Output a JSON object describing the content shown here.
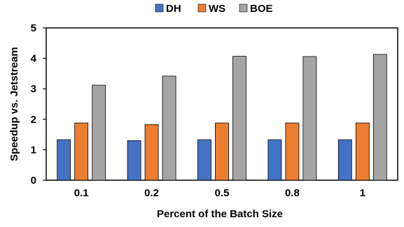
{
  "chart_data": {
    "type": "bar",
    "title": "",
    "xlabel": "Percent of the Batch Size",
    "ylabel": "Speedup vs. Jetstream",
    "categories": [
      "0.1",
      "0.2",
      "0.5",
      "0.8",
      "1"
    ],
    "series": [
      {
        "name": "DH",
        "color": "#4472C4",
        "values": [
          1.33,
          1.3,
          1.33,
          1.33,
          1.33
        ]
      },
      {
        "name": "WS",
        "color": "#ED7D31",
        "values": [
          1.88,
          1.83,
          1.88,
          1.88,
          1.88
        ]
      },
      {
        "name": "BOE",
        "color": "#A5A5A5",
        "values": [
          3.12,
          3.42,
          4.07,
          4.06,
          4.13
        ]
      }
    ],
    "ylim": [
      0,
      5
    ],
    "yticks": [
      "0",
      "1",
      "2",
      "3",
      "4",
      "5"
    ],
    "grid": false,
    "legend_position": "top"
  }
}
